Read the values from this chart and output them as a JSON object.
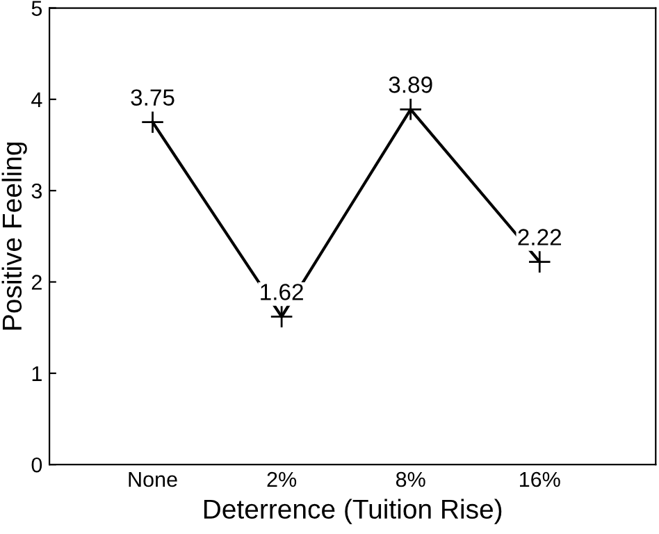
{
  "chart_data": {
    "type": "line",
    "xlabel": "Deterrence (Tuition Rise)",
    "ylabel": "Positive Feeling",
    "categories": [
      "None",
      "2%",
      "8%",
      "16%"
    ],
    "series": [
      {
        "color": "#000000",
        "values": [
          3.75,
          1.62,
          3.89,
          2.22
        ]
      }
    ],
    "ylim": [
      0,
      5
    ],
    "yticks": [
      0,
      1,
      2,
      3,
      4,
      5
    ],
    "marker": "cross",
    "line_style": "solid",
    "data_labels": true
  }
}
